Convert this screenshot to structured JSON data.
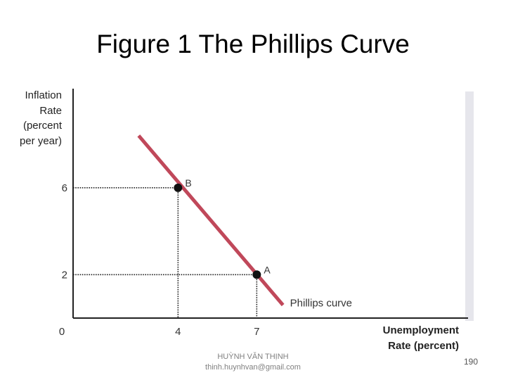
{
  "title": "Figure 1 The Phillips Curve",
  "footer": {
    "name": "HUỲNH VĂN THỊNH",
    "email": "thinh.huynhvan@gmail.com",
    "page_number": "190"
  },
  "colors": {
    "curve": "#c0485a",
    "plot_shadow": "#e6e6ec",
    "axis": "#222222",
    "guide": "#222222"
  },
  "chart_data": {
    "type": "line",
    "title": "Figure 1 The Phillips Curve",
    "ylabel": "Inflation Rate (percent per year)",
    "ylabel_lines": [
      "Inflation",
      "Rate",
      "(percent",
      "per year)"
    ],
    "xlabel": "Unemployment Rate (percent)",
    "xlabel_lines": [
      "Unemployment",
      "Rate (percent)"
    ],
    "xlim": [
      0,
      15
    ],
    "ylim": [
      0,
      10.5
    ],
    "origin_label": "0",
    "x_ticks": [
      {
        "value": 4,
        "label": "4"
      },
      {
        "value": 7,
        "label": "7"
      }
    ],
    "y_ticks": [
      {
        "value": 6,
        "label": "6"
      },
      {
        "value": 2,
        "label": "2"
      }
    ],
    "series": [
      {
        "name": "Phillips curve",
        "x": [
          2.5,
          8.0
        ],
        "y": [
          8.4,
          0.6
        ]
      }
    ],
    "points": [
      {
        "label": "B",
        "x": 4,
        "y": 6
      },
      {
        "label": "A",
        "x": 7,
        "y": 2
      }
    ],
    "grid": false,
    "legend": "curve-label"
  }
}
